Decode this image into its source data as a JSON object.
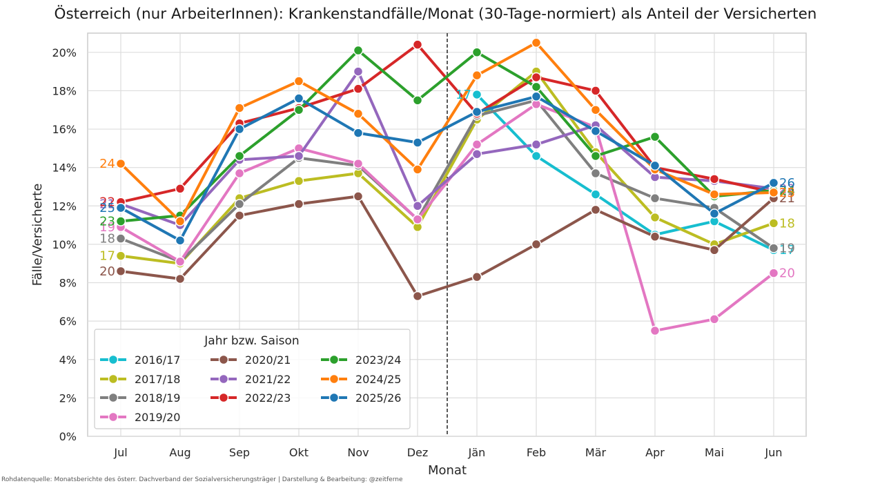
{
  "title": "Österreich (nur ArbeiterInnen): Krankenstandfälle/Monat (30-Tage-normiert) als Anteil der Versicherten",
  "source": "Rohdatenquelle: Monatsberichte des österr. Dachverband der Sozialversicherungsträger | Darstellung & Bearbeitung: @zeitferne",
  "chart_data": {
    "type": "line",
    "title": "Österreich (nur ArbeiterInnen): Krankenstandfälle/Monat (30-Tage-normiert) als Anteil der Versicherten",
    "xlabel": "Monat",
    "ylabel": "Fälle/Versicherte",
    "categories": [
      "Jul",
      "Aug",
      "Sep",
      "Okt",
      "Nov",
      "Dez",
      "Jän",
      "Feb",
      "Mär",
      "Apr",
      "Mai",
      "Jun"
    ],
    "y_ticks": [
      "0%",
      "2%",
      "4%",
      "6%",
      "8%",
      "10%",
      "12%",
      "14%",
      "16%",
      "18%",
      "20%"
    ],
    "ylim": [
      0,
      21
    ],
    "grid": true,
    "vertical_divider_between": [
      "Dez",
      "Jän"
    ],
    "legend": {
      "title": "Jahr bzw. Saison",
      "placement": "lower-left",
      "columns": 3
    },
    "series": [
      {
        "name": "2016/17",
        "color": "#17becf",
        "values": [
          null,
          null,
          null,
          null,
          null,
          null,
          17.8,
          14.6,
          12.6,
          10.5,
          11.2,
          9.7
        ],
        "start_label": "",
        "end_label": "17"
      },
      {
        "name": "2017/18",
        "color": "#bcbd22",
        "values": [
          9.4,
          9.0,
          12.4,
          13.3,
          13.7,
          10.9,
          16.5,
          19.0,
          14.8,
          11.4,
          10.0,
          11.1
        ],
        "start_label": "17",
        "end_label": "18"
      },
      {
        "name": "2018/19",
        "color": "#7f7f7f",
        "values": [
          10.3,
          9.1,
          12.1,
          14.5,
          14.1,
          11.3,
          16.7,
          17.5,
          13.7,
          12.4,
          11.9,
          9.8
        ],
        "start_label": "18",
        "end_label": "19"
      },
      {
        "name": "2019/20",
        "color": "#e377c2",
        "values": [
          10.9,
          9.1,
          13.7,
          15.0,
          14.2,
          11.3,
          15.2,
          17.3,
          16.1,
          5.5,
          6.1,
          8.5
        ],
        "start_label": "19",
        "end_label": "20"
      },
      {
        "name": "2020/21",
        "color": "#8c564b",
        "values": [
          8.6,
          8.2,
          11.5,
          12.1,
          12.5,
          7.3,
          8.3,
          10.0,
          11.8,
          10.4,
          9.7,
          12.4
        ],
        "start_label": "20",
        "end_label": "21"
      },
      {
        "name": "2021/22",
        "color": "#9467bd",
        "values": [
          12.1,
          11.0,
          14.4,
          14.6,
          19.0,
          12.0,
          14.7,
          15.2,
          16.2,
          13.5,
          13.3,
          12.9
        ],
        "start_label": "21",
        "end_label": "22"
      },
      {
        "name": "2022/23",
        "color": "#d62728",
        "values": [
          12.2,
          12.9,
          16.3,
          17.1,
          18.1,
          20.4,
          16.8,
          18.7,
          18.0,
          14.0,
          13.4,
          12.7
        ],
        "start_label": "22",
        "end_label": "23"
      },
      {
        "name": "2023/24",
        "color": "#2ca02c",
        "values": [
          11.2,
          11.5,
          14.6,
          17.0,
          20.1,
          17.5,
          20.0,
          18.2,
          14.6,
          15.6,
          12.5,
          12.8
        ],
        "start_label": "23",
        "end_label": "24"
      },
      {
        "name": "2024/25",
        "color": "#ff7f0e",
        "values": [
          14.2,
          11.2,
          17.1,
          18.5,
          16.8,
          13.9,
          18.8,
          20.5,
          17.0,
          13.9,
          12.6,
          12.7
        ],
        "start_label": "24",
        "end_label": "25"
      },
      {
        "name": "2025/26",
        "color": "#1f77b4",
        "values": [
          11.9,
          10.2,
          16.0,
          17.6,
          15.8,
          15.3,
          16.9,
          17.7,
          15.9,
          14.1,
          11.6,
          13.2
        ],
        "start_label": "25",
        "end_label": "26"
      }
    ],
    "annotations": [
      {
        "text": "17",
        "at_category": "Jän",
        "series": "2016/17",
        "position": "left-of-point"
      }
    ]
  }
}
